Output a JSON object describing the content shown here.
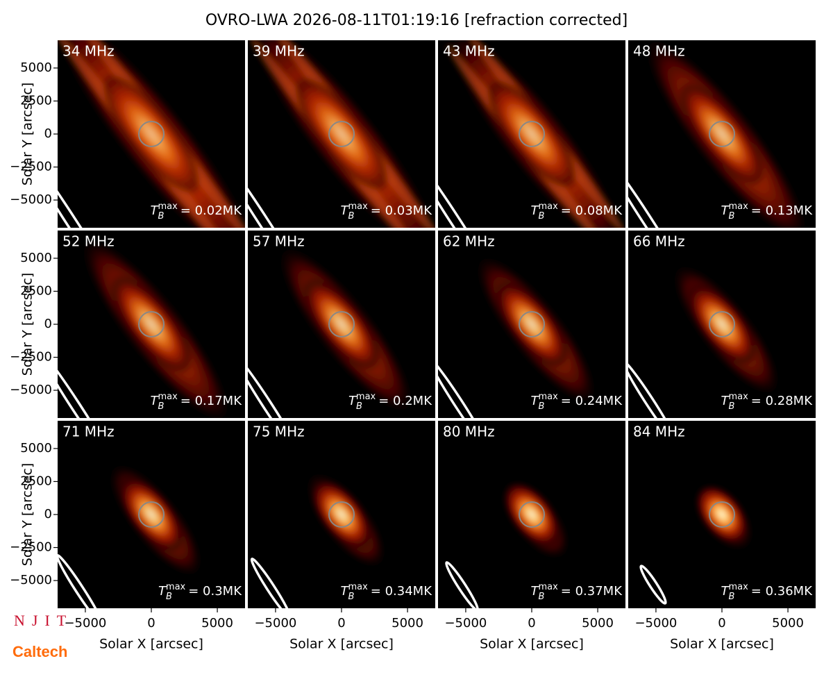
{
  "chart_data": {
    "type": "image_grid",
    "title": "OVRO-LWA 2026-08-11T01:19:16 [refraction corrected]",
    "xlabel": "Solar X [arcsec]",
    "ylabel": "Solar Y [arcsec]",
    "xlim": [
      -7100,
      7100
    ],
    "ylim": [
      -7100,
      7100
    ],
    "xticks": [
      {
        "value": -5000,
        "label": "−5000"
      },
      0,
      5000
    ],
    "yticks": [
      {
        "value": -5000,
        "label": "−5000"
      },
      {
        "value": -2500,
        "label": "−2500"
      },
      0,
      2500,
      5000
    ],
    "columns": 4,
    "tb_symbol": "T",
    "tb_sub": "B",
    "tb_sup": "max",
    "panels": [
      {
        "title": "34 MHz",
        "tb_label": "= 0.02MK"
      },
      {
        "title": "39 MHz",
        "tb_label": "= 0.03MK"
      },
      {
        "title": "43 MHz",
        "tb_label": "= 0.08MK"
      },
      {
        "title": "48 MHz",
        "tb_label": "= 0.13MK"
      },
      {
        "title": "52 MHz",
        "tb_label": "= 0.17MK"
      },
      {
        "title": "57 MHz",
        "tb_label": "= 0.2MK"
      },
      {
        "title": "62 MHz",
        "tb_label": "= 0.24MK"
      },
      {
        "title": "66 MHz",
        "tb_label": "= 0.28MK"
      },
      {
        "title": "71 MHz",
        "tb_label": "= 0.3MK"
      },
      {
        "title": "75 MHz",
        "tb_label": "= 0.34MK"
      },
      {
        "title": "80 MHz",
        "tb_label": "= 0.37MK"
      },
      {
        "title": "84 MHz",
        "tb_label": "= 0.36MK"
      }
    ],
    "logos": {
      "njit": "NJIT",
      "caltech": "Caltech"
    }
  }
}
